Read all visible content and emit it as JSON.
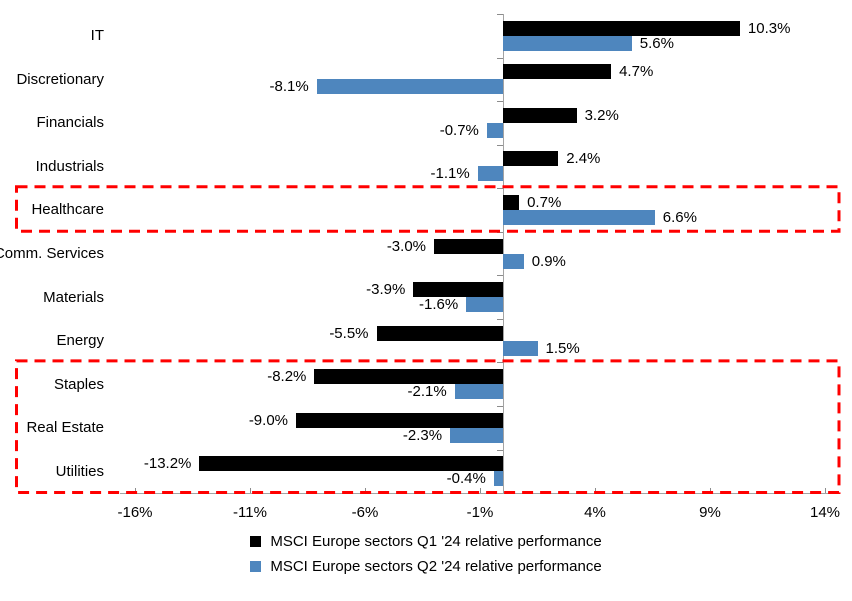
{
  "chart_data": {
    "type": "bar",
    "orientation": "horizontal",
    "title": "",
    "categories": [
      "IT",
      "Discretionary",
      "Financials",
      "Industrials",
      "Healthcare",
      "Comm. Services",
      "Materials",
      "Energy",
      "Staples",
      "Real Estate",
      "Utilities"
    ],
    "series": [
      {
        "name": "MSCI Europe sectors Q1 '24 relative performance",
        "color": "#000000",
        "values": [
          10.3,
          4.7,
          3.2,
          2.4,
          0.7,
          -3.0,
          -3.9,
          -5.5,
          -8.2,
          -9.0,
          -13.2
        ],
        "labels": [
          "10.3%",
          "4.7%",
          "3.2%",
          "2.4%",
          "0.7%",
          "-3.0%",
          "-3.9%",
          "-5.5%",
          "-8.2%",
          "-9.0%",
          "-13.2%"
        ]
      },
      {
        "name": "MSCI Europe sectors Q2 '24 relative performance",
        "color": "#4E86BE",
        "values": [
          5.6,
          -8.1,
          -0.7,
          -1.1,
          6.6,
          0.9,
          -1.6,
          1.5,
          -2.1,
          -2.3,
          -0.4
        ],
        "labels": [
          "5.6%",
          "-8.1%",
          "-0.7%",
          "-1.1%",
          "6.6%",
          "0.9%",
          "-1.6%",
          "1.5%",
          "-2.1%",
          "-2.3%",
          "-0.4%"
        ]
      }
    ],
    "x_axis": {
      "tick_labels": [
        "-16%",
        "-11%",
        "-6%",
        "-1%",
        "4%",
        "9%",
        "14%"
      ],
      "tick_values": [
        -16,
        -11,
        -6,
        -1,
        4,
        9,
        14
      ],
      "min": -16.7,
      "max": 14.3,
      "unit": "%"
    },
    "ylabel": "",
    "xlabel": "",
    "grid": false,
    "legend_position": "bottom",
    "axis_color": "#A3A3A3",
    "highlight_color": "#FF0000",
    "highlights": [
      {
        "categories": [
          "Healthcare"
        ]
      },
      {
        "categories": [
          "Staples",
          "Real Estate",
          "Utilities"
        ]
      }
    ]
  }
}
